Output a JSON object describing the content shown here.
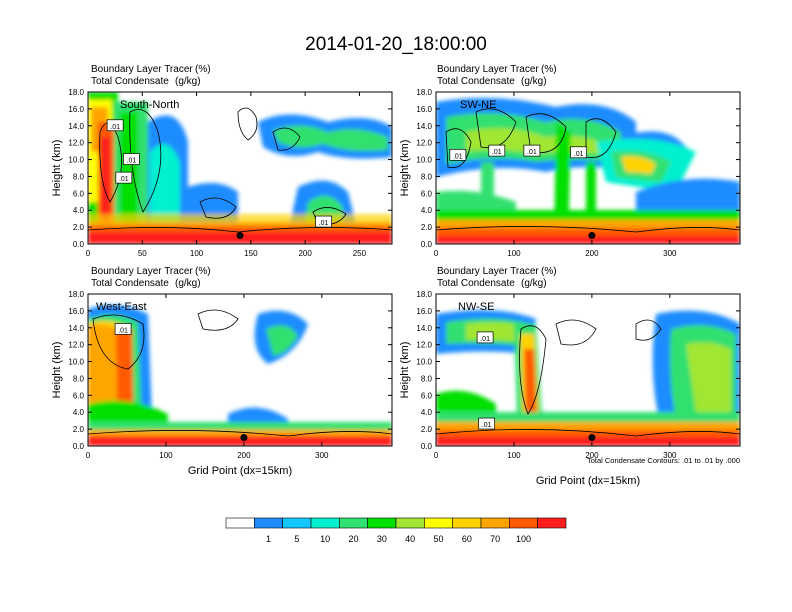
{
  "title": "2014-01-20_18:00:00",
  "panel_header": {
    "line1_left": "Boundary Layer Tracer",
    "line1_right": "(%)",
    "line2_left": "Total Condensate",
    "line2_right": "(g/kg)"
  },
  "y_axis_label": "Height (km)",
  "x_axis_label": "Grid Point (dx=15km)",
  "contour_note": "Total Condensate Contours: .01 to .01 by .000",
  "contour_label": ".01",
  "colorbar": {
    "colors": [
      "#ffffff",
      "#1e8cff",
      "#14c8ff",
      "#00f0d0",
      "#30e070",
      "#00e000",
      "#a0e632",
      "#ffff00",
      "#ffd200",
      "#ffa500",
      "#ff5a00",
      "#ff1e1e"
    ],
    "labels": [
      "1",
      "5",
      "10",
      "20",
      "30",
      "40",
      "50",
      "60",
      "70",
      "100"
    ]
  },
  "chart_data": [
    {
      "type": "heatmap",
      "name": "South-North",
      "label": "South-North",
      "xlim": [
        0,
        280
      ],
      "ylim": [
        0,
        18
      ],
      "xticks": [
        0,
        50,
        100,
        150,
        200,
        250
      ],
      "yticks": [
        "0.0",
        "2.0",
        "4.0",
        "6.0",
        "8.0",
        "10.0",
        "12.0",
        "14.0",
        "16.0",
        "18.0"
      ],
      "marker": {
        "x": 140,
        "y": 1.0
      },
      "contour_labels": [
        {
          "x": 25,
          "y": 14.0
        },
        {
          "x": 40,
          "y": 10.0
        },
        {
          "x": 33,
          "y": 7.8
        },
        {
          "x": 217,
          "y": 2.6
        }
      ]
    },
    {
      "type": "heatmap",
      "name": "SW-NE",
      "label": "SW-NE",
      "xlim": [
        0,
        390
      ],
      "ylim": [
        0,
        18
      ],
      "xticks": [
        0,
        100,
        200,
        300
      ],
      "yticks": [
        "0.0",
        "2.0",
        "4.0",
        "6.0",
        "8.0",
        "10.0",
        "12.0",
        "14.0",
        "16.0",
        "18.0"
      ],
      "marker": {
        "x": 200,
        "y": 1.0
      },
      "contour_labels": [
        {
          "x": 28,
          "y": 10.5
        },
        {
          "x": 78,
          "y": 11.0
        },
        {
          "x": 123,
          "y": 11.0
        },
        {
          "x": 183,
          "y": 10.8
        }
      ]
    },
    {
      "type": "heatmap",
      "name": "West-East",
      "label": "West-East",
      "xlim": [
        0,
        390
      ],
      "ylim": [
        0,
        18
      ],
      "xticks": [
        0,
        100,
        200,
        300
      ],
      "yticks": [
        "0.0",
        "2.0",
        "4.0",
        "6.0",
        "8.0",
        "10.0",
        "12.0",
        "14.0",
        "16.0",
        "18.0"
      ],
      "marker": {
        "x": 200,
        "y": 1.0
      },
      "contour_labels": [
        {
          "x": 45,
          "y": 13.8
        }
      ]
    },
    {
      "type": "heatmap",
      "name": "NW-SE",
      "label": "NW-SE",
      "xlim": [
        0,
        390
      ],
      "ylim": [
        0,
        18
      ],
      "xticks": [
        0,
        100,
        200,
        300
      ],
      "yticks": [
        "0.0",
        "2.0",
        "4.0",
        "6.0",
        "8.0",
        "10.0",
        "12.0",
        "14.0",
        "16.0",
        "18.0"
      ],
      "marker": {
        "x": 200,
        "y": 1.0
      },
      "contour_labels": [
        {
          "x": 63,
          "y": 12.8
        },
        {
          "x": 65,
          "y": 2.6
        }
      ]
    }
  ]
}
